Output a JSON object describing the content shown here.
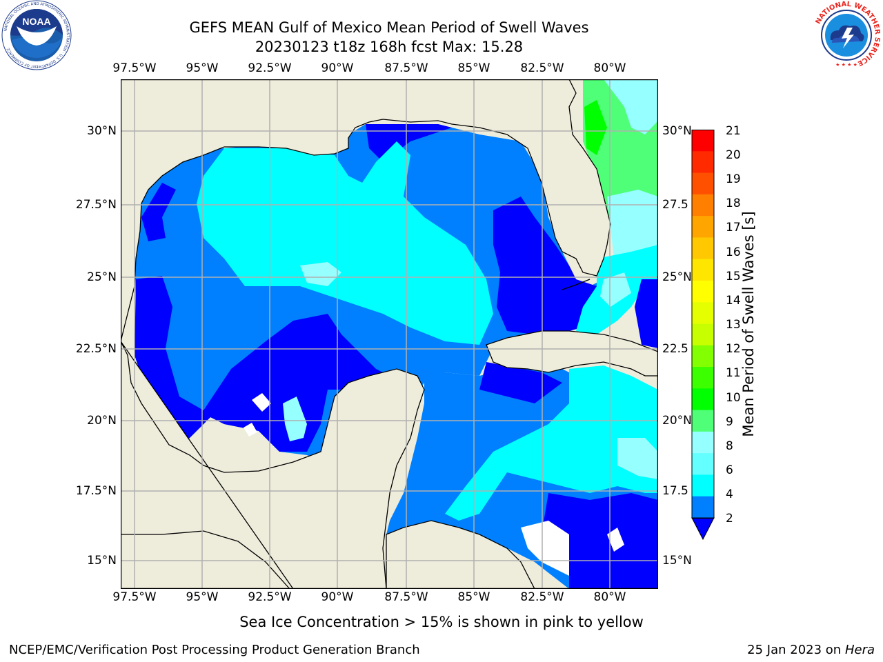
{
  "title_line1": "GEFS MEAN Gulf of Mexico Mean Period of Swell Waves",
  "title_line2": "20230123 t18z 168h fcst   Max: 15.28",
  "lon_ticks": [
    "97.5°W",
    "95°W",
    "92.5°W",
    "90°W",
    "87.5°W",
    "85°W",
    "82.5°W",
    "80°W"
  ],
  "lat_ticks_left": [
    "30°N",
    "27.5°N",
    "25°N",
    "22.5°N",
    "20°N",
    "17.5°N",
    "15°N"
  ],
  "lat_ticks_right": [
    "30°N",
    "27.5",
    "25°N",
    "22.5",
    "20°N",
    "17.5",
    "15°N"
  ],
  "colorbar": {
    "label": "Mean Period of Swell Waves [s]",
    "ticks": [
      "21",
      "20",
      "19",
      "18",
      "17",
      "16",
      "15",
      "14",
      "13",
      "12",
      "11",
      "10",
      "9",
      "8",
      "6",
      "4",
      "2"
    ],
    "colors": [
      "#ff0000",
      "#ff2a00",
      "#ff5000",
      "#ff7f00",
      "#ffa500",
      "#ffc800",
      "#ffe600",
      "#ffff00",
      "#e6ff00",
      "#c8ff00",
      "#82ff00",
      "#3cff00",
      "#00ff00",
      "#50ff78",
      "#96ffff",
      "#64ffff",
      "#00ffff",
      "#0080ff",
      "#0000ff"
    ]
  },
  "map_colors": {
    "land": "#eeecdb",
    "deep_blue": "#0000ff",
    "mid_blue": "#0080ff",
    "cyan": "#00ffff",
    "light_cyan": "#96ffff",
    "green": "#50ff78",
    "bright_green": "#00ff00",
    "yellow": "#ffff00",
    "lime": "#c8ff00"
  },
  "footer_note": "Sea Ice Concentration > 15% is shown in pink to yellow",
  "footer_left": "NCEP/EMC/Verification Post Processing Product Generation Branch",
  "footer_date": "25 Jan 2023 on ",
  "footer_host": "Hera",
  "logos": {
    "noaa": "NOAA",
    "noaa_ring": "NATIONAL OCEANIC AND ATMOSPHERIC ADMINISTRATION · U.S. DEPARTMENT OF COMMERCE",
    "nws_ring": "NATIONAL WEATHER SERVICE"
  }
}
